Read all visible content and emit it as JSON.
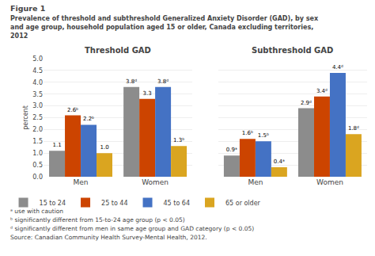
{
  "title": "Figure 1",
  "subtitle": [
    "Prevalence of threshold and subthreshold Generalized Anxiety Disorder (GAD), by sex",
    "and age group, household population aged 15 or older, Canada excluding territories,",
    "2012"
  ],
  "annotations": [
    "ᵃ use with caution",
    "ᵇ significantly different from 15-to-24 age group (p < 0.05)",
    "ᵈ significantly different from men in same age group and GAD category (p < 0.05)",
    "Source: Canadian Community Health Survey-Mental Health, 2012."
  ],
  "chart_data": [
    {
      "type": "bar",
      "title": "Threshold GAD",
      "ylabel": "percent",
      "categories": [
        "Men",
        "Women"
      ],
      "series": [
        {
          "name": "15 to 24",
          "color": "#8C8C8C",
          "values": [
            1.1,
            3.8
          ],
          "value_labels": [
            "1.1",
            "3.8ᵈ"
          ]
        },
        {
          "name": "25 to 44",
          "color": "#CC4400",
          "values": [
            2.6,
            3.3
          ],
          "value_labels": [
            "2.6ᵇ",
            "3.3"
          ]
        },
        {
          "name": "45 to 64",
          "color": "#4472C4",
          "values": [
            2.2,
            3.8
          ],
          "value_labels": [
            "2.2ᵇ",
            "3.8ᵈ"
          ]
        },
        {
          "name": "65 or older",
          "color": "#DAA520",
          "values": [
            1.0,
            1.3
          ],
          "value_labels": [
            "1.0",
            "1.3ᵇ"
          ]
        }
      ],
      "ylim": [
        0.0,
        5.0
      ],
      "yticks": [
        {
          "value": 0.0,
          "label": "0.0"
        },
        0.5,
        {
          "value": 1.0,
          "label": "1.0"
        },
        1.5,
        {
          "value": 2.0,
          "label": "2.0"
        },
        2.5,
        {
          "value": 3.0,
          "label": "3.0"
        },
        3.5,
        {
          "value": 4.0,
          "label": "4.0"
        },
        4.5,
        {
          "value": 5.0,
          "label": "5.0"
        }
      ],
      "grid": true,
      "data_labels": true
    },
    {
      "type": "bar",
      "title": "Subthreshold GAD",
      "categories": [
        "Men",
        "Women"
      ],
      "series": [
        {
          "name": "15 to 24",
          "color": "#8C8C8C",
          "values": [
            0.9,
            2.9
          ],
          "value_labels": [
            "0.9ᵃ",
            "2.9ᵈ"
          ]
        },
        {
          "name": "25 to 44",
          "color": "#CC4400",
          "values": [
            1.6,
            3.4
          ],
          "value_labels": [
            "1.6ᵇ",
            "3.4ᵈ"
          ]
        },
        {
          "name": "45 to 64",
          "color": "#4472C4",
          "values": [
            1.5,
            4.4
          ],
          "value_labels": [
            "1.5ᵇ",
            "4.4ᵈ"
          ]
        },
        {
          "name": "65 or older",
          "color": "#DAA520",
          "values": [
            0.4,
            1.8
          ],
          "value_labels": [
            "0.4ᵃ",
            "1.8ᵈ"
          ]
        }
      ],
      "ylim": [
        0.0,
        5.0
      ],
      "yticks": [
        0.0,
        0.5,
        1.0,
        1.5,
        2.0,
        2.5,
        3.0,
        3.5,
        4.0,
        4.5,
        5.0
      ],
      "grid": true,
      "data_labels": true,
      "tick_labels": "x"
    }
  ]
}
